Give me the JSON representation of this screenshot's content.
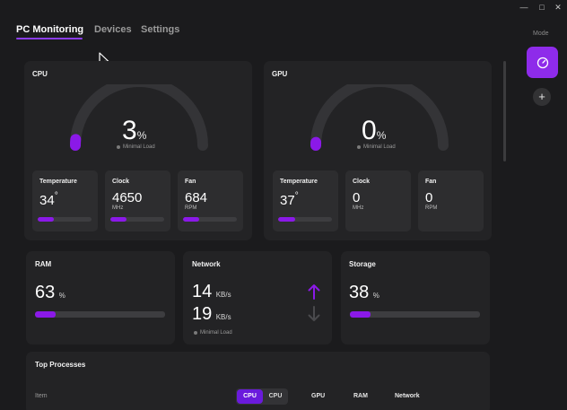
{
  "window": {
    "minimize": "—",
    "maximize": "□",
    "close": "✕"
  },
  "nav": {
    "tabs": [
      "PC Monitoring",
      "Devices",
      "Settings"
    ]
  },
  "rail": {
    "mode_label": "Mode"
  },
  "cpu": {
    "title": "CPU",
    "value": "3",
    "unit": "%",
    "status": "Minimal Load",
    "gauge_fraction": 0.03,
    "temp": {
      "label": "Temperature",
      "value": "34",
      "unit": "°",
      "fraction": 0.3
    },
    "clock": {
      "label": "Clock",
      "value": "4650",
      "unit": "MHz",
      "fraction": 0.3
    },
    "fan": {
      "label": "Fan",
      "value": "684",
      "unit": "RPM",
      "fraction": 0.3
    }
  },
  "gpu": {
    "title": "GPU",
    "value": "0",
    "unit": "%",
    "status": "Minimal Load",
    "gauge_fraction": 0.0,
    "temp": {
      "label": "Temperature",
      "value": "37",
      "unit": "°",
      "fraction": 0.32
    },
    "clock": {
      "label": "Clock",
      "value": "0",
      "unit": "MHz",
      "fraction": 0
    },
    "fan": {
      "label": "Fan",
      "value": "0",
      "unit": "RPM",
      "fraction": 0
    }
  },
  "ram": {
    "title": "RAM",
    "value": "63",
    "unit": "%",
    "fraction": 0.16
  },
  "network": {
    "title": "Network",
    "up_value": "14",
    "up_unit": "KB/s",
    "down_value": "19",
    "down_unit": "KB/s",
    "status": "Minimal Load"
  },
  "storage": {
    "title": "Storage",
    "value": "38",
    "unit": "%",
    "fraction": 0.16
  },
  "processes": {
    "title": "Top Processes",
    "item_header": "Item",
    "seg_on": "CPU",
    "seg_off": "CPU",
    "columns": [
      "GPU",
      "RAM",
      "Network"
    ]
  },
  "colors": {
    "accent": "#8b19e8",
    "mode_button": "#8e2bea",
    "panel": "#232325",
    "background": "#1b1b1d"
  }
}
